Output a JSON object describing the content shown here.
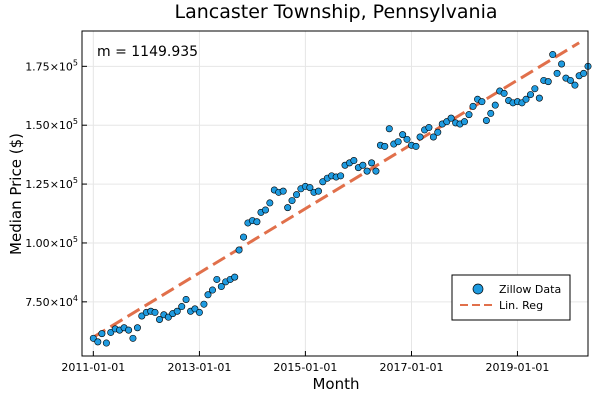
{
  "chart_data": {
    "type": "scatter",
    "title": "Lancaster Township, Pennsylvania",
    "xlabel": "Month",
    "ylabel": "Median Price ($)",
    "xlim": [
      "2010-10-15",
      "2020-05-01"
    ],
    "ylim": [
      52000,
      190000
    ],
    "x_ticks": [
      "2011-01-01",
      "2013-01-01",
      "2015-01-01",
      "2017-01-01",
      "2019-01-01"
    ],
    "y_ticks": [
      {
        "value": 75000,
        "mantissa": "7.50",
        "exponent": "4"
      },
      {
        "value": 100000,
        "mantissa": "1.00",
        "exponent": "5"
      },
      {
        "value": 125000,
        "mantissa": "1.25",
        "exponent": "5"
      },
      {
        "value": 150000,
        "mantissa": "1.50",
        "exponent": "5"
      },
      {
        "value": 175000,
        "mantissa": "1.75",
        "exponent": "5"
      }
    ],
    "grid": true,
    "annotation": "m = 1149.935",
    "legend_position": "bottom-right",
    "series": [
      {
        "name": "Zillow Data",
        "kind": "scatter",
        "color": "#1f9be0",
        "start": "2011-01-01",
        "interval": "month",
        "values": [
          59500,
          58000,
          61500,
          57500,
          62000,
          63500,
          63000,
          64000,
          63000,
          59500,
          64000,
          69000,
          70500,
          71000,
          70500,
          67500,
          69500,
          68500,
          70000,
          71000,
          73000,
          76000,
          71000,
          72000,
          70500,
          74000,
          78000,
          80000,
          84500,
          81500,
          83500,
          84500,
          85500,
          97000,
          102500,
          108500,
          109500,
          109000,
          113000,
          114000,
          117000,
          122500,
          121500,
          122000,
          115000,
          118000,
          120500,
          123000,
          124000,
          123500,
          121500,
          122000,
          126000,
          127500,
          128500,
          128000,
          128500,
          133000,
          134000,
          135000,
          132000,
          133000,
          130500,
          134000,
          130500,
          141500,
          141000,
          148500,
          142000,
          143000,
          146000,
          144000,
          141500,
          141000,
          145000,
          148000,
          149000,
          145000,
          147000,
          150500,
          151500,
          153000,
          151000,
          150500,
          151500,
          154500,
          158000,
          161000,
          160000,
          152000,
          155000,
          158500,
          164500,
          163500,
          160500,
          159500,
          160000,
          159500,
          161000,
          163000,
          165500,
          161500,
          169000,
          168500,
          180000,
          172000,
          176000,
          170000,
          169000,
          167000,
          171000,
          172000,
          175000
        ]
      },
      {
        "name": "Lin. Reg",
        "kind": "line",
        "color": "#e1704b",
        "x": [
          "2011-01-01",
          "2020-03-01"
        ],
        "y": [
          60000,
          185000
        ]
      }
    ]
  }
}
